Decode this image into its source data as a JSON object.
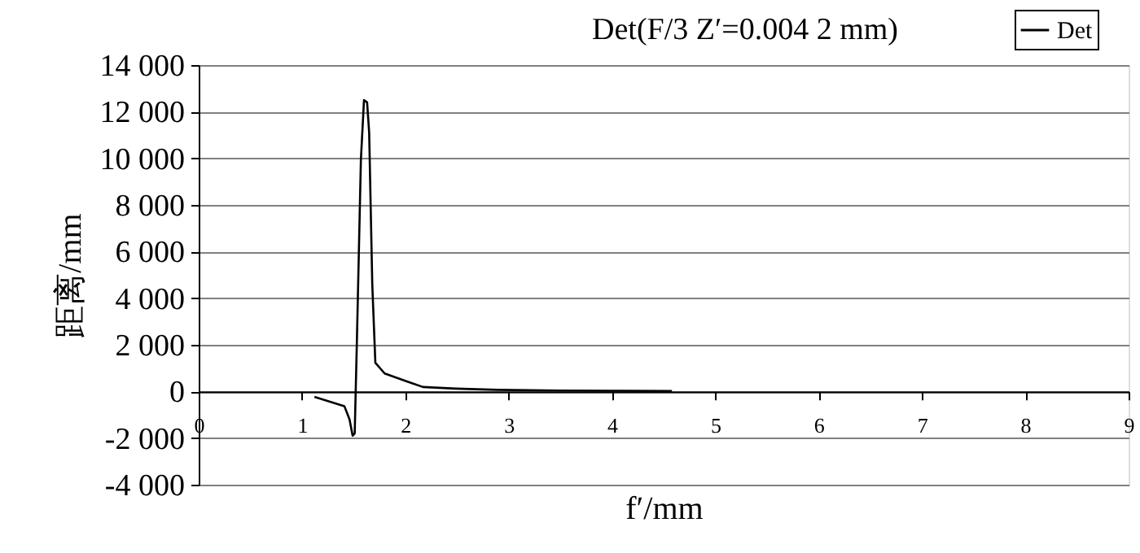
{
  "chart_data": {
    "type": "line",
    "title": "Det(F/3 Z′=0.004 2 mm)",
    "xlabel": "f′/mm",
    "ylabel": "距离/mm",
    "xlim": [
      0,
      9
    ],
    "xticks": [
      0,
      1,
      2,
      3,
      4,
      5,
      6,
      7,
      8,
      9
    ],
    "ylim": [
      -4000,
      14000
    ],
    "yticks": [
      {
        "value": -4000,
        "label": "-4 000"
      },
      {
        "value": -2000,
        "label": "-2 000"
      },
      0,
      {
        "value": 2000,
        "label": "2 000"
      },
      {
        "value": 4000,
        "label": "4 000"
      },
      {
        "value": 6000,
        "label": "6 000"
      },
      {
        "value": 8000,
        "label": "8 000"
      },
      {
        "value": 10000,
        "label": "10 000"
      },
      {
        "value": 12000,
        "label": "12 000"
      },
      {
        "value": 14000,
        "label": "14 000"
      }
    ],
    "grid": "y",
    "legend": "top right",
    "marker": "none",
    "line_style": "solid",
    "series": [
      {
        "name": "Det",
        "color": "#000000",
        "x": [
          1.12,
          1.41,
          1.46,
          1.49,
          1.51,
          1.53,
          1.57,
          1.6,
          1.63,
          1.65,
          1.68,
          1.71,
          1.8,
          2.02,
          2.17,
          2.49,
          2.89,
          3.5,
          4.0,
          4.58
        ],
        "values": [
          -230,
          -630,
          -1200,
          -1900,
          -1800,
          1930,
          9950,
          12500,
          12400,
          11100,
          4600,
          1230,
          770,
          420,
          190,
          120,
          70,
          40,
          30,
          20
        ]
      }
    ]
  }
}
